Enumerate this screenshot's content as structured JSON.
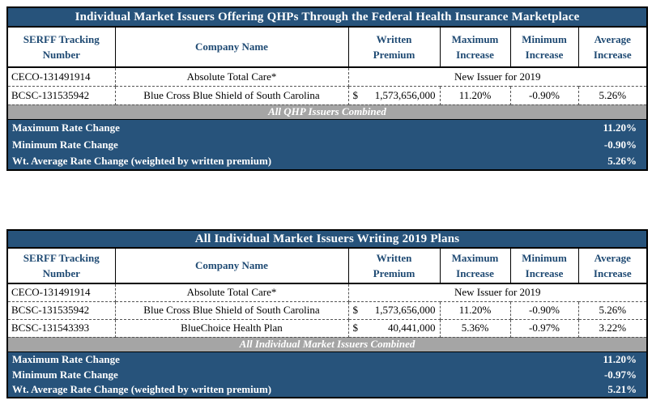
{
  "colors": {
    "accent_blue": "#27537B",
    "band_gray": "#A5A5A5",
    "header_text_blue": "#1F4A73",
    "border_black": "#000000"
  },
  "headers": [
    {
      "line1": "SERFF Tracking",
      "line2": "Number"
    },
    {
      "line1": "Company Name"
    },
    {
      "line1": "Written",
      "line2": "Premium"
    },
    {
      "line1": "Maximum",
      "line2": "Increase"
    },
    {
      "line1": "Minimum",
      "line2": "Increase"
    },
    {
      "line1": "Average",
      "line2": "Increase"
    }
  ],
  "table1": {
    "title": "Individual Market Issuers Offering QHPs Through the Federal Health Insurance Marketplace",
    "rows": [
      {
        "serff": "CECO-131491914",
        "company": "Absolute Total Care*",
        "merged": "New Issuer for 2019"
      },
      {
        "serff": "BCSC-131535942",
        "company": "Blue Cross Blue Shield of South Carolina",
        "currency": "$",
        "premium": "1,573,656,000",
        "max_increase": "11.20%",
        "min_increase": "-0.90%",
        "avg_increase": "5.26%"
      }
    ],
    "band": "All QHP Issuers Combined",
    "summary": [
      {
        "label": "Maximum Rate Change",
        "value": "11.20%"
      },
      {
        "label": "Minimum Rate Change",
        "value": "-0.90%"
      },
      {
        "label": "Wt. Average Rate Change (weighted by written premium)",
        "value": "5.26%"
      }
    ]
  },
  "table2": {
    "title": "All Individual Market Issuers Writing 2019 Plans",
    "rows": [
      {
        "serff": "CECO-131491914",
        "company": "Absolute Total Care*",
        "merged": "New Issuer for 2019"
      },
      {
        "serff": "BCSC-131535942",
        "company": "Blue Cross Blue Shield of South Carolina",
        "currency": "$",
        "premium": "1,573,656,000",
        "max_increase": "11.20%",
        "min_increase": "-0.90%",
        "avg_increase": "5.26%"
      },
      {
        "serff": "BCSC-131543393",
        "company": "BlueChoice Health Plan",
        "currency": "$",
        "premium": "40,441,000",
        "max_increase": "5.36%",
        "min_increase": "-0.97%",
        "avg_increase": "3.22%"
      }
    ],
    "band": "All Individual Market Issuers Combined",
    "summary": [
      {
        "label": "Maximum Rate Change",
        "value": "11.20%"
      },
      {
        "label": "Minimum Rate Change",
        "value": "-0.97%"
      },
      {
        "label": "Wt. Average Rate Change (weighted by written premium)",
        "value": "5.21%"
      }
    ]
  }
}
